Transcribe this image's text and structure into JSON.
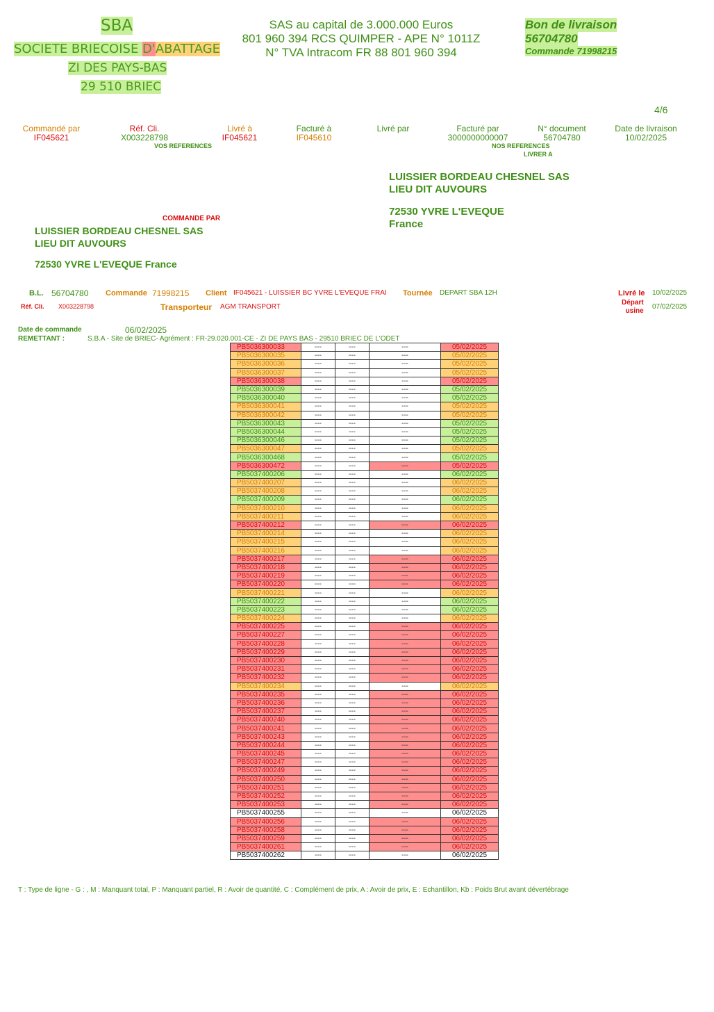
{
  "company": {
    "short": "SBA",
    "name_part1": "SOCIETE BRIECOISE ",
    "name_part2": "D'",
    "name_part3": "ABATTAGE",
    "zone": "ZI DES PAYS-BAS",
    "city": "29 510 BRIEC"
  },
  "legal": {
    "line1": "SAS au capital de 3.000.000 Euros",
    "line2": "801 960 394 RCS QUIMPER - APE N° 1011Z",
    "line3": "N° TVA Intracom FR 88 801 960 394"
  },
  "doc": {
    "title": "Bon de livraison",
    "number": "56704780",
    "order": "Commande 71998215",
    "page": "4/6"
  },
  "headers": {
    "commande_par": "Commandé par",
    "commande_par_val": "IF045621",
    "ref_cli": "Réf. Cli.",
    "ref_cli_val": "X003228798",
    "vos_refs": "VOS REFERENCES",
    "livre_a": "Livré à",
    "livre_a_val": "IF045621",
    "facture_a": "Facturé à",
    "facture_a_val": "IF045610",
    "livre_par": "Livré par",
    "facture_par": "Facturé par",
    "facture_par_val": "3000000000007",
    "nos_refs": "NOS REFERENCES",
    "no_document": "N° document",
    "no_document_val": "56704780",
    "date_livraison": "Date de livraison",
    "date_livraison_val": "10/02/2025",
    "livrer_a": "LIVRER A"
  },
  "delivery_address": {
    "line1": "LUISSIER BORDEAU CHESNEL SAS",
    "line2": "LIEU DIT AUVOURS",
    "line3": "72530 YVRE L'EVEQUE",
    "line4": "France"
  },
  "order_address": {
    "label": "COMMANDE PAR",
    "line1": "LUISSIER BORDEAU CHESNEL SAS",
    "line2": "LIEU DIT AUVOURS",
    "line3": "72530 YVRE L'EVEQUE France"
  },
  "bl": {
    "bl_label": "B.L.",
    "bl_val": "56704780",
    "commande_label": "Commande",
    "commande_val": "71998215",
    "client_label": "Client",
    "client_val": "IF045621 - LUISSIER BC YVRE L'EVEQUE FRAI",
    "tournee_label": "Tournée",
    "tournee_val": "DEPART SBA 12H",
    "livre_le_label": "Livré le",
    "livre_le_val": "10/02/2025",
    "ref_cli_label": "Réf. Cli.",
    "ref_cli_val": "X003228798",
    "transporteur_label": "Transporteur",
    "transporteur_val": "AGM TRANSPORT",
    "depart_label1": "Départ",
    "depart_label2": "usine",
    "depart_val": "07/02/2025",
    "date_cmd_label": "Date de commande",
    "date_cmd_val": "06/02/2025",
    "remettant_label": "REMETTANT :",
    "remettant_val": "S.B.A - Site de BRIEC- Agrément : FR-29.020.001-CE - ZI DE PAYS BAS - 29510 BRIEC DE L'ODET"
  },
  "items": [
    [
      "PB5036300033",
      "---",
      "---",
      "---",
      "05/02/2025"
    ],
    [
      "PB5036300035",
      "---",
      "---",
      "---",
      "05/02/2025"
    ],
    [
      "PB5036300036",
      "---",
      "---",
      "---",
      "05/02/2025"
    ],
    [
      "PB5036300037",
      "---",
      "---",
      "---",
      "05/02/2025"
    ],
    [
      "PB5036300038",
      "---",
      "---",
      "---",
      "05/02/2025"
    ],
    [
      "PB5036300039",
      "---",
      "---",
      "---",
      "05/02/2025"
    ],
    [
      "PB5036300040",
      "---",
      "---",
      "---",
      "05/02/2025"
    ],
    [
      "PB5036300041",
      "---",
      "---",
      "---",
      "05/02/2025"
    ],
    [
      "PB5036300042",
      "---",
      "---",
      "---",
      "05/02/2025"
    ],
    [
      "PB5036300043",
      "---",
      "---",
      "---",
      "05/02/2025"
    ],
    [
      "PB5036300044",
      "---",
      "---",
      "---",
      "05/02/2025"
    ],
    [
      "PB5036300046",
      "---",
      "---",
      "---",
      "05/02/2025"
    ],
    [
      "PB5036300047",
      "---",
      "---",
      "---",
      "05/02/2025"
    ],
    [
      "PB5036300468",
      "---",
      "---",
      "---",
      "05/02/2025"
    ],
    [
      "PB5036300472",
      "---",
      "---",
      "---",
      "05/02/2025"
    ],
    [
      "PB5037400206",
      "---",
      "---",
      "---",
      "06/02/2025"
    ],
    [
      "PB5037400207",
      "---",
      "---",
      "---",
      "06/02/2025"
    ],
    [
      "PB5037400208",
      "---",
      "---",
      "---",
      "06/02/2025"
    ],
    [
      "PB5037400209",
      "---",
      "---",
      "---",
      "06/02/2025"
    ],
    [
      "PB5037400210",
      "---",
      "---",
      "---",
      "06/02/2025"
    ],
    [
      "PB5037400211",
      "---",
      "---",
      "---",
      "06/02/2025"
    ],
    [
      "PB5037400212",
      "---",
      "---",
      "---",
      "06/02/2025"
    ],
    [
      "PB5037400214",
      "---",
      "---",
      "---",
      "06/02/2025"
    ],
    [
      "PB5037400215",
      "---",
      "---",
      "---",
      "06/02/2025"
    ],
    [
      "PB5037400216",
      "---",
      "---",
      "---",
      "06/02/2025"
    ],
    [
      "PB5037400217",
      "---",
      "---",
      "---",
      "06/02/2025"
    ],
    [
      "PB5037400218",
      "---",
      "---",
      "---",
      "06/02/2025"
    ],
    [
      "PB5037400219",
      "---",
      "---",
      "---",
      "06/02/2025"
    ],
    [
      "PB5037400220",
      "---",
      "---",
      "---",
      "06/02/2025"
    ],
    [
      "PB5037400221",
      "---",
      "---",
      "---",
      "06/02/2025"
    ],
    [
      "PB5037400222",
      "---",
      "---",
      "---",
      "06/02/2025"
    ],
    [
      "PB5037400223",
      "---",
      "---",
      "---",
      "06/02/2025"
    ],
    [
      "PB5037400224",
      "---",
      "---",
      "---",
      "06/02/2025"
    ],
    [
      "PB5037400225",
      "---",
      "---",
      "---",
      "06/02/2025"
    ],
    [
      "PB5037400227",
      "---",
      "---",
      "---",
      "06/02/2025"
    ],
    [
      "PB5037400228",
      "---",
      "---",
      "---",
      "06/02/2025"
    ],
    [
      "PB5037400229",
      "---",
      "---",
      "---",
      "06/02/2025"
    ],
    [
      "PB5037400230",
      "---",
      "---",
      "---",
      "06/02/2025"
    ],
    [
      "PB5037400231",
      "---",
      "---",
      "---",
      "06/02/2025"
    ],
    [
      "PB5037400232",
      "---",
      "---",
      "---",
      "06/02/2025"
    ],
    [
      "PB5037400234",
      "---",
      "---",
      "---",
      "06/02/2025"
    ],
    [
      "PB5037400235",
      "---",
      "---",
      "---",
      "06/02/2025"
    ],
    [
      "PB5037400236",
      "---",
      "---",
      "---",
      "06/02/2025"
    ],
    [
      "PB5037400237",
      "---",
      "---",
      "---",
      "06/02/2025"
    ],
    [
      "PB5037400240",
      "---",
      "---",
      "---",
      "06/02/2025"
    ],
    [
      "PB5037400241",
      "---",
      "---",
      "---",
      "06/02/2025"
    ],
    [
      "PB5037400243",
      "---",
      "---",
      "---",
      "06/02/2025"
    ],
    [
      "PB5037400244",
      "---",
      "---",
      "---",
      "06/02/2025"
    ],
    [
      "PB5037400245",
      "---",
      "---",
      "---",
      "06/02/2025"
    ],
    [
      "PB5037400247",
      "---",
      "---",
      "---",
      "06/02/2025"
    ],
    [
      "PB5037400249",
      "---",
      "---",
      "---",
      "06/02/2025"
    ],
    [
      "PB5037400250",
      "---",
      "---",
      "---",
      "06/02/2025"
    ],
    [
      "PB5037400251",
      "---",
      "---",
      "---",
      "06/02/2025"
    ],
    [
      "PB5037400252",
      "---",
      "---",
      "---",
      "06/02/2025"
    ],
    [
      "PB5037400253",
      "---",
      "---",
      "---",
      "06/02/2025"
    ],
    [
      "PB5037400255",
      "---",
      "---",
      "---",
      "06/02/2025"
    ],
    [
      "PB5037400256",
      "---",
      "---",
      "---",
      "06/02/2025"
    ],
    [
      "PB5037400258",
      "---",
      "---",
      "---",
      "06/02/2025"
    ],
    [
      "PB5037400259",
      "---",
      "---",
      "---",
      "06/02/2025"
    ],
    [
      "PB5037400261",
      "---",
      "---",
      "---",
      "06/02/2025"
    ],
    [
      "PB5037400262",
      "---",
      "---",
      "---",
      "06/02/2025"
    ]
  ],
  "row_colors": [
    "r",
    "o",
    "o",
    "o",
    "r",
    "g",
    "g",
    "o",
    "o",
    "g",
    "g",
    "g",
    "o",
    "g",
    "r",
    "g",
    "o",
    "o",
    "g",
    "o",
    "o",
    "r",
    "o",
    "o",
    "o",
    "r",
    "r",
    "r",
    "r",
    "o",
    "g",
    "g",
    "o",
    "r",
    "r",
    "r",
    "r",
    "r",
    "r",
    "r",
    "o",
    "r",
    "r",
    "r",
    "r",
    "r",
    "r",
    "r",
    "r",
    "r",
    "r",
    "r",
    "r",
    "r",
    "r",
    "k",
    "r",
    "r",
    "r",
    "r",
    "k"
  ],
  "legend": "T : Type de ligne - G : , M : Manquant total, P : Manquant partiel, R : Avoir de quantité, C : Complément de prix, A : Avoir de prix, E : Echantillon, Kb : Poids Brut avant dévertébrage",
  "colors": {
    "green": "#3f8f16",
    "orange": "#d47f00",
    "red": "#d80f0f",
    "hl_green": "#c8ef9a",
    "hl_orange": "#ffd27a",
    "hl_red": "#ff8f8f"
  }
}
